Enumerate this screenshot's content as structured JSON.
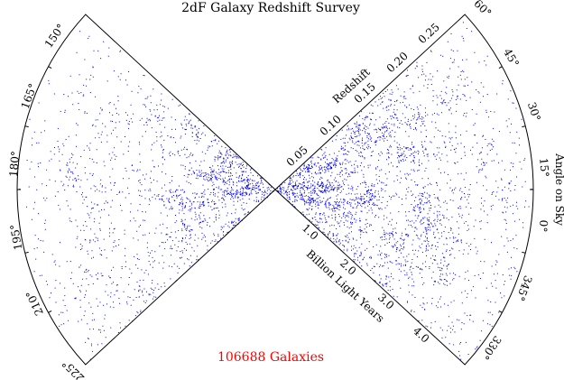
{
  "chart_data": {
    "type": "scatter",
    "title": "2dF Galaxy Redshift Survey",
    "annotation": "106688 Galaxies",
    "point_color": "#0000ff",
    "annotation_color": "#ff0000",
    "radial_axis": {
      "label_top": "Redshift",
      "redshift_ticks": [
        "0.05",
        "0.10",
        "0.15",
        "0.20",
        "0.25"
      ],
      "label_bottom": "Billion Light Years",
      "distance_ticks": [
        "1.0",
        "2.0",
        "3.0",
        "4.0"
      ]
    },
    "angle_axis": {
      "label": "Angle on Sky",
      "right_wedge_ticks": [
        "60°",
        "45°",
        "30°",
        "15°",
        "0°",
        "345°",
        "330°"
      ],
      "left_wedge_ticks": [
        "150°",
        "165°",
        "180°",
        "195°",
        "210°",
        "225°"
      ]
    },
    "galaxy_count": 106688
  }
}
